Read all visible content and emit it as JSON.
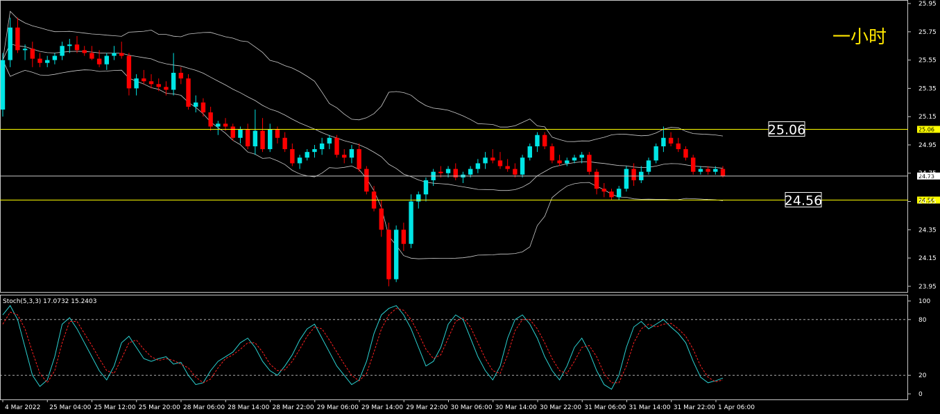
{
  "timeframe_label": "一小时",
  "colors": {
    "background": "#000000",
    "bull": "#00e5e5",
    "bear": "#ff0000",
    "level_line": "#ffff00",
    "current_line": "#c8c8c8",
    "band_line": "#cccccc",
    "stoch_main": "#2bd3d3",
    "stoch_signal": "#ff2020"
  },
  "chart_data": [
    {
      "type": "candlestick",
      "y_ticks": [
        "25.95",
        "25.75",
        "25.55",
        "25.35",
        "25.15",
        "24.95",
        "24.75",
        "24.55",
        "24.35",
        "24.15",
        "23.95"
      ],
      "ylim": [
        23.91,
        25.97
      ],
      "x_ticks": [
        "4 Mar 2022",
        "25 Mar 04:00",
        "25 Mar 12:00",
        "25 Mar 20:00",
        "28 Mar 06:00",
        "28 Mar 14:00",
        "28 Mar 22:00",
        "29 Mar 06:00",
        "29 Mar 14:00",
        "29 Mar 22:00",
        "30 Mar 06:00",
        "30 Mar 14:00",
        "30 Mar 22:00",
        "31 Mar 06:00",
        "31 Mar 14:00",
        "31 Mar 22:00",
        "1 Apr 06:00"
      ],
      "levels": [
        {
          "label": "25.06",
          "value": 25.06
        },
        {
          "label": "24.56",
          "value": 24.56
        }
      ],
      "current_price": {
        "label": "24.73",
        "value": 24.73
      },
      "candles": [
        [
          25.2,
          25.6,
          25.15,
          25.55
        ],
        [
          25.55,
          25.85,
          25.5,
          25.78
        ],
        [
          25.78,
          25.85,
          25.6,
          25.62
        ],
        [
          25.62,
          25.66,
          25.55,
          25.63
        ],
        [
          25.63,
          25.68,
          25.5,
          25.56
        ],
        [
          25.56,
          25.6,
          25.5,
          25.53
        ],
        [
          25.53,
          25.58,
          25.5,
          25.55
        ],
        [
          25.55,
          25.6,
          25.52,
          25.58
        ],
        [
          25.58,
          25.68,
          25.55,
          25.65
        ],
        [
          25.65,
          25.7,
          25.6,
          25.66
        ],
        [
          25.66,
          25.72,
          25.6,
          25.62
        ],
        [
          25.62,
          25.65,
          25.58,
          25.6
        ],
        [
          25.6,
          25.65,
          25.55,
          25.56
        ],
        [
          25.56,
          25.62,
          25.5,
          25.52
        ],
        [
          25.52,
          25.6,
          25.48,
          25.58
        ],
        [
          25.58,
          25.65,
          25.55,
          25.6
        ],
        [
          25.6,
          25.68,
          25.56,
          25.58
        ],
        [
          25.58,
          25.6,
          25.3,
          25.35
        ],
        [
          25.35,
          25.45,
          25.3,
          25.42
        ],
        [
          25.42,
          25.48,
          25.38,
          25.4
        ],
        [
          25.4,
          25.45,
          25.35,
          25.38
        ],
        [
          25.38,
          25.42,
          25.33,
          25.36
        ],
        [
          25.36,
          25.4,
          25.3,
          25.34
        ],
        [
          25.34,
          25.6,
          25.3,
          25.46
        ],
        [
          25.46,
          25.5,
          25.38,
          25.42
        ],
        [
          25.42,
          25.45,
          25.2,
          25.22
        ],
        [
          25.22,
          25.3,
          25.18,
          25.25
        ],
        [
          25.25,
          25.28,
          25.15,
          25.18
        ],
        [
          25.18,
          25.22,
          25.05,
          25.08
        ],
        [
          25.08,
          25.12,
          25.02,
          25.1
        ],
        [
          25.1,
          25.14,
          25.05,
          25.08
        ],
        [
          25.08,
          25.1,
          24.98,
          25.0
        ],
        [
          25.0,
          25.08,
          24.96,
          25.06
        ],
        [
          25.06,
          25.1,
          24.92,
          24.94
        ],
        [
          24.94,
          25.2,
          24.88,
          25.05
        ],
        [
          25.05,
          25.14,
          24.9,
          24.92
        ],
        [
          24.92,
          25.1,
          24.9,
          25.06
        ],
        [
          25.06,
          25.08,
          24.96,
          25.0
        ],
        [
          25.0,
          25.04,
          24.9,
          24.92
        ],
        [
          24.92,
          24.96,
          24.8,
          24.82
        ],
        [
          24.82,
          24.88,
          24.78,
          24.86
        ],
        [
          24.86,
          24.92,
          24.84,
          24.9
        ],
        [
          24.9,
          24.95,
          24.86,
          24.92
        ],
        [
          24.92,
          25.0,
          24.88,
          24.96
        ],
        [
          24.96,
          25.02,
          24.92,
          25.0
        ],
        [
          25.0,
          25.02,
          24.86,
          24.88
        ],
        [
          24.88,
          24.92,
          24.82,
          24.86
        ],
        [
          24.86,
          24.95,
          24.82,
          24.92
        ],
        [
          24.92,
          24.96,
          24.76,
          24.78
        ],
        [
          24.78,
          24.8,
          24.6,
          24.62
        ],
        [
          24.62,
          24.66,
          24.48,
          24.5
        ],
        [
          24.5,
          24.56,
          24.3,
          24.35
        ],
        [
          24.35,
          24.4,
          23.95,
          24.0
        ],
        [
          24.0,
          24.38,
          23.98,
          24.35
        ],
        [
          24.35,
          24.4,
          24.2,
          24.25
        ],
        [
          24.25,
          24.6,
          24.22,
          24.55
        ],
        [
          24.55,
          24.62,
          24.5,
          24.6
        ],
        [
          24.6,
          24.72,
          24.55,
          24.7
        ],
        [
          24.7,
          24.78,
          24.66,
          24.76
        ],
        [
          24.76,
          24.8,
          24.72,
          24.75
        ],
        [
          24.75,
          24.8,
          24.72,
          24.78
        ],
        [
          24.78,
          24.82,
          24.7,
          24.72
        ],
        [
          24.72,
          24.76,
          24.68,
          24.74
        ],
        [
          24.74,
          24.8,
          24.72,
          24.78
        ],
        [
          24.78,
          24.85,
          24.75,
          24.82
        ],
        [
          24.82,
          24.9,
          24.78,
          24.86
        ],
        [
          24.86,
          24.92,
          24.82,
          24.84
        ],
        [
          24.84,
          24.9,
          24.78,
          24.8
        ],
        [
          24.8,
          24.85,
          24.76,
          24.78
        ],
        [
          24.78,
          24.82,
          24.72,
          24.74
        ],
        [
          24.74,
          24.88,
          24.72,
          24.86
        ],
        [
          24.86,
          24.96,
          24.84,
          24.94
        ],
        [
          24.94,
          25.04,
          24.9,
          25.02
        ],
        [
          25.02,
          25.04,
          24.92,
          24.94
        ],
        [
          24.94,
          24.96,
          24.82,
          24.84
        ],
        [
          24.84,
          24.88,
          24.8,
          24.82
        ],
        [
          24.82,
          24.86,
          24.8,
          24.84
        ],
        [
          24.84,
          24.88,
          24.82,
          24.86
        ],
        [
          24.86,
          24.9,
          24.82,
          24.88
        ],
        [
          24.88,
          24.9,
          24.74,
          24.76
        ],
        [
          24.76,
          24.78,
          24.6,
          24.64
        ],
        [
          24.64,
          24.68,
          24.58,
          24.62
        ],
        [
          24.62,
          24.64,
          24.56,
          24.58
        ],
        [
          24.58,
          24.66,
          24.56,
          24.64
        ],
        [
          24.64,
          24.8,
          24.62,
          24.78
        ],
        [
          24.78,
          24.82,
          24.66,
          24.7
        ],
        [
          24.7,
          24.8,
          24.68,
          24.76
        ],
        [
          24.76,
          24.86,
          24.74,
          24.84
        ],
        [
          24.84,
          24.96,
          24.82,
          24.94
        ],
        [
          24.94,
          25.08,
          24.9,
          25.0
        ],
        [
          25.0,
          25.04,
          24.94,
          24.96
        ],
        [
          24.96,
          25.0,
          24.9,
          24.92
        ],
        [
          24.92,
          24.94,
          24.84,
          24.86
        ],
        [
          24.86,
          24.88,
          24.74,
          24.76
        ],
        [
          24.76,
          24.8,
          24.74,
          24.78
        ],
        [
          24.78,
          24.8,
          24.74,
          24.76
        ],
        [
          24.76,
          24.8,
          24.74,
          24.78
        ],
        [
          24.78,
          24.8,
          24.72,
          24.73
        ]
      ]
    },
    {
      "type": "line",
      "title": "Stoch(5,3,3) 17.0732 15.2403",
      "y_ticks": [
        "100",
        "80",
        "20",
        "0"
      ],
      "ylim": [
        0,
        100
      ],
      "levels": [
        80,
        20
      ],
      "series": [
        {
          "values": [
            85,
            95,
            80,
            50,
            20,
            8,
            15,
            40,
            75,
            82,
            70,
            55,
            40,
            25,
            15,
            30,
            55,
            62,
            50,
            38,
            35,
            38,
            40,
            32,
            34,
            20,
            10,
            12,
            25,
            35,
            40,
            45,
            55,
            60,
            50,
            35,
            25,
            20,
            30,
            42,
            58,
            70,
            75,
            60,
            45,
            30,
            20,
            10,
            15,
            35,
            65,
            85,
            92,
            95,
            85,
            70,
            50,
            30,
            35,
            50,
            75,
            85,
            80,
            60,
            40,
            25,
            15,
            30,
            60,
            80,
            85,
            75,
            60,
            40,
            25,
            15,
            30,
            50,
            60,
            45,
            25,
            10,
            5,
            20,
            50,
            72,
            78,
            70,
            75,
            80,
            72,
            65,
            55,
            35,
            18,
            12,
            14,
            17
          ]
        },
        {
          "values": [
            75,
            88,
            85,
            70,
            45,
            22,
            12,
            25,
            55,
            78,
            78,
            65,
            52,
            38,
            25,
            22,
            38,
            55,
            58,
            48,
            40,
            36,
            38,
            36,
            32,
            28,
            18,
            12,
            16,
            28,
            38,
            42,
            48,
            55,
            55,
            45,
            32,
            25,
            26,
            35,
            48,
            62,
            72,
            70,
            58,
            45,
            32,
            20,
            14,
            22,
            45,
            70,
            85,
            92,
            90,
            80,
            65,
            48,
            38,
            42,
            60,
            78,
            82,
            72,
            55,
            38,
            25,
            22,
            42,
            68,
            80,
            80,
            70,
            55,
            38,
            25,
            22,
            35,
            50,
            52,
            40,
            22,
            12,
            12,
            30,
            55,
            70,
            75,
            72,
            75,
            76,
            70,
            62,
            48,
            30,
            18,
            13,
            15
          ]
        }
      ]
    }
  ]
}
